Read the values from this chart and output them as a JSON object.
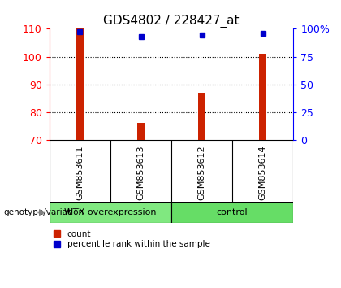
{
  "title": "GDS4802 / 228427_at",
  "samples": [
    "GSM853611",
    "GSM853613",
    "GSM853612",
    "GSM853614"
  ],
  "bar_values": [
    115,
    76,
    87,
    101
  ],
  "percentile_values": [
    97,
    93,
    94.5,
    96
  ],
  "ylim_left": [
    70,
    110
  ],
  "ylim_right": [
    0,
    100
  ],
  "yticks_left": [
    70,
    80,
    90,
    100,
    110
  ],
  "yticks_right": [
    0,
    25,
    50,
    75,
    100
  ],
  "ytick_labels_right": [
    "0",
    "25",
    "50",
    "75",
    "100%"
  ],
  "bar_color": "#cc2200",
  "dot_color": "#0000cc",
  "group1_label": "WTX overexpression",
  "group2_label": "control",
  "group1_color": "#80e880",
  "group2_color": "#66dd66",
  "bar_width": 0.12,
  "legend_count_label": "count",
  "legend_percentile_label": "percentile rank within the sample",
  "genotype_label": "genotype/variation",
  "label_bg": "#d0d0d0",
  "dot_size": 5
}
